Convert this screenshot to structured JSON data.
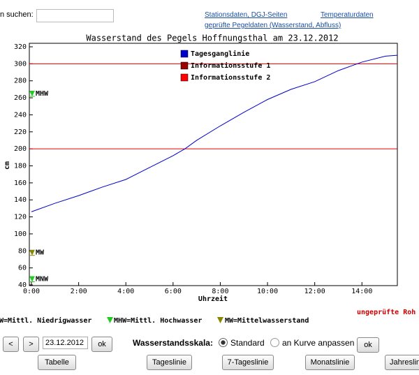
{
  "search": {
    "label": "n suchen:"
  },
  "links": [
    "Stationsdaten, DGJ-Seiten",
    "Temperaturdaten",
    "geprüfte Pegeldaten (Wasserstand, Abfluss)"
  ],
  "chart_data": {
    "type": "line",
    "title": "Wasserstand des Pegels Hoffnungsthal am  23.12.2012",
    "x_label": "Uhrzeit",
    "y_label": "cm",
    "x": [
      0,
      1,
      2,
      3,
      4,
      5,
      6,
      6.5,
      7,
      8,
      9,
      10,
      11,
      12,
      13,
      14,
      15,
      15.5
    ],
    "series": [
      {
        "name": "Tagesganglinie",
        "color": "#0000cc",
        "values": [
          126,
          136,
          145,
          155,
          164,
          178,
          192,
          200,
          210,
          227,
          243,
          258,
          270,
          279,
          292,
          302,
          309,
          310
        ]
      }
    ],
    "reference_lines": [
      {
        "name": "Informationsstufe 1",
        "color": "#990000",
        "value": 200
      },
      {
        "name": "Informationsstufe 2",
        "color": "#ff0000",
        "value": 300
      }
    ],
    "markers": [
      {
        "label": "MHW",
        "value": 265,
        "color": "#22cc22"
      },
      {
        "label": "MW",
        "value": 78,
        "color": "#888800"
      },
      {
        "label": "MNW",
        "value": 47,
        "color": "#22cc22"
      }
    ],
    "xlim": [
      0,
      15.5
    ],
    "xticks": [
      {
        "value": 0,
        "label": "0:00"
      },
      {
        "value": 2,
        "label": "2:00"
      },
      {
        "value": 4,
        "label": "4:00"
      },
      {
        "value": 6,
        "label": "6:00"
      },
      {
        "value": 8,
        "label": "8:00"
      },
      {
        "value": 10,
        "label": "10:00"
      },
      {
        "value": 12,
        "label": "12:00"
      },
      {
        "value": 14,
        "label": "14:00"
      }
    ],
    "ylim": [
      40,
      320
    ],
    "yticks": [
      40,
      60,
      80,
      100,
      120,
      140,
      160,
      180,
      200,
      220,
      240,
      260,
      280,
      300,
      320
    ]
  },
  "footer_legend": [
    {
      "text": "W=Mittl. Niedrigwasser"
    },
    {
      "text": "MHW=Mittl. Hochwasser",
      "color": "#22cc22"
    },
    {
      "text": "MW=Mittelwasserstand",
      "color": "#888800"
    }
  ],
  "status": "ungeprüfte Roh",
  "controls": {
    "prev": "<",
    "next": ">",
    "date": "23.12.2012",
    "ok": "ok",
    "scale_label": "Wasserstandsskala:",
    "options": [
      "Standard",
      "an Kurve anpassen"
    ],
    "ok2": "ok"
  },
  "buttons": [
    "Tabelle",
    "Tageslinie",
    "7-Tageslinie",
    "Monatslinie",
    "Jahreslini"
  ]
}
